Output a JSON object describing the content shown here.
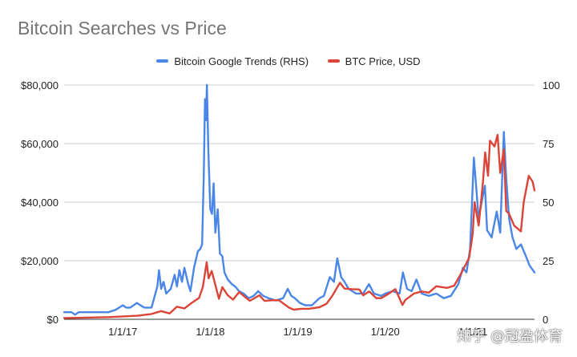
{
  "chart_data": {
    "type": "line",
    "title": "Bitcoin Searches vs Price",
    "legend_position": "top",
    "grid": true,
    "x_ticks": [
      "1/1/17",
      "1/1/18",
      "1/1/19",
      "1/1/20",
      "1/1/21"
    ],
    "xlim": [
      "2016-05-01",
      "2021-09-15"
    ],
    "y_left": {
      "label": "",
      "lim": [
        0,
        80000
      ],
      "ticks": [
        "$0",
        "$20,000",
        "$40,000",
        "$60,000",
        "$80,000"
      ]
    },
    "y_right": {
      "label": "",
      "lim": [
        0,
        100
      ],
      "ticks": [
        "0",
        "25",
        "50",
        "75",
        "100"
      ]
    },
    "series": [
      {
        "name": "Bitcoin Google Trends (RHS)",
        "axis": "right",
        "color": "#4a86e8",
        "points": [
          [
            "2016-05-01",
            3
          ],
          [
            "2016-06-01",
            3
          ],
          [
            "2016-06-15",
            2
          ],
          [
            "2016-07-01",
            3
          ],
          [
            "2016-08-01",
            3
          ],
          [
            "2016-09-01",
            3
          ],
          [
            "2016-10-01",
            3
          ],
          [
            "2016-11-01",
            3
          ],
          [
            "2016-12-01",
            4
          ],
          [
            "2017-01-01",
            6
          ],
          [
            "2017-01-15",
            5
          ],
          [
            "2017-02-01",
            5
          ],
          [
            "2017-03-01",
            7
          ],
          [
            "2017-03-15",
            6
          ],
          [
            "2017-04-01",
            5
          ],
          [
            "2017-05-01",
            5
          ],
          [
            "2017-05-25",
            14
          ],
          [
            "2017-06-01",
            21
          ],
          [
            "2017-06-10",
            13
          ],
          [
            "2017-06-20",
            16
          ],
          [
            "2017-07-01",
            11
          ],
          [
            "2017-07-20",
            13
          ],
          [
            "2017-08-05",
            19
          ],
          [
            "2017-08-15",
            14
          ],
          [
            "2017-08-25",
            21
          ],
          [
            "2017-09-05",
            16
          ],
          [
            "2017-09-15",
            22
          ],
          [
            "2017-10-01",
            15
          ],
          [
            "2017-10-10",
            12
          ],
          [
            "2017-10-25",
            22
          ],
          [
            "2017-11-10",
            29
          ],
          [
            "2017-11-20",
            30
          ],
          [
            "2017-11-28",
            32
          ],
          [
            "2017-12-05",
            62
          ],
          [
            "2017-12-10",
            94
          ],
          [
            "2017-12-14",
            85
          ],
          [
            "2017-12-18",
            100
          ],
          [
            "2017-12-24",
            72
          ],
          [
            "2018-01-01",
            47
          ],
          [
            "2018-01-08",
            45
          ],
          [
            "2018-01-15",
            58
          ],
          [
            "2018-01-22",
            37
          ],
          [
            "2018-02-01",
            47
          ],
          [
            "2018-02-10",
            28
          ],
          [
            "2018-02-20",
            27
          ],
          [
            "2018-03-01",
            20
          ],
          [
            "2018-03-15",
            17
          ],
          [
            "2018-04-01",
            15
          ],
          [
            "2018-04-15",
            14
          ],
          [
            "2018-05-01",
            12
          ],
          [
            "2018-05-20",
            11
          ],
          [
            "2018-06-10",
            9
          ],
          [
            "2018-07-01",
            10
          ],
          [
            "2018-07-20",
            12
          ],
          [
            "2018-08-10",
            10
          ],
          [
            "2018-09-01",
            9
          ],
          [
            "2018-10-01",
            8
          ],
          [
            "2018-11-01",
            9
          ],
          [
            "2018-11-20",
            13
          ],
          [
            "2018-12-05",
            10
          ],
          [
            "2018-12-20",
            9
          ],
          [
            "2019-01-10",
            7
          ],
          [
            "2019-02-01",
            6
          ],
          [
            "2019-03-01",
            6
          ],
          [
            "2019-04-01",
            9
          ],
          [
            "2019-04-20",
            10
          ],
          [
            "2019-05-15",
            18
          ],
          [
            "2019-06-01",
            16
          ],
          [
            "2019-06-15",
            26
          ],
          [
            "2019-07-01",
            18
          ],
          [
            "2019-07-15",
            16
          ],
          [
            "2019-08-01",
            13
          ],
          [
            "2019-09-01",
            11
          ],
          [
            "2019-10-01",
            11
          ],
          [
            "2019-10-25",
            15
          ],
          [
            "2019-11-15",
            11
          ],
          [
            "2019-12-15",
            10
          ],
          [
            "2020-01-01",
            11
          ],
          [
            "2020-02-01",
            12
          ],
          [
            "2020-03-01",
            11
          ],
          [
            "2020-03-15",
            20
          ],
          [
            "2020-04-01",
            13
          ],
          [
            "2020-04-20",
            12
          ],
          [
            "2020-05-10",
            17
          ],
          [
            "2020-06-01",
            11
          ],
          [
            "2020-07-01",
            10
          ],
          [
            "2020-08-01",
            11
          ],
          [
            "2020-09-01",
            9
          ],
          [
            "2020-10-01",
            10
          ],
          [
            "2020-11-01",
            15
          ],
          [
            "2020-11-20",
            22
          ],
          [
            "2020-12-05",
            20
          ],
          [
            "2020-12-20",
            30
          ],
          [
            "2021-01-05",
            69
          ],
          [
            "2021-01-12",
            60
          ],
          [
            "2021-01-25",
            43
          ],
          [
            "2021-02-10",
            52
          ],
          [
            "2021-02-20",
            57
          ],
          [
            "2021-03-01",
            38
          ],
          [
            "2021-03-20",
            35
          ],
          [
            "2021-04-10",
            46
          ],
          [
            "2021-04-25",
            37
          ],
          [
            "2021-05-10",
            80
          ],
          [
            "2021-05-20",
            60
          ],
          [
            "2021-06-01",
            43
          ],
          [
            "2021-06-15",
            35
          ],
          [
            "2021-07-01",
            30
          ],
          [
            "2021-07-20",
            32
          ],
          [
            "2021-08-10",
            27
          ],
          [
            "2021-08-25",
            23
          ],
          [
            "2021-09-15",
            20
          ]
        ]
      },
      {
        "name": "BTC Price, USD",
        "axis": "left",
        "color": "#db4437",
        "points": [
          [
            "2016-05-01",
            450
          ],
          [
            "2016-08-01",
            570
          ],
          [
            "2016-11-01",
            730
          ],
          [
            "2017-01-01",
            990
          ],
          [
            "2017-03-01",
            1200
          ],
          [
            "2017-05-01",
            1800
          ],
          [
            "2017-06-10",
            2800
          ],
          [
            "2017-07-15",
            2000
          ],
          [
            "2017-08-15",
            4300
          ],
          [
            "2017-09-15",
            3700
          ],
          [
            "2017-10-15",
            5600
          ],
          [
            "2017-11-15",
            7300
          ],
          [
            "2017-12-01",
            11000
          ],
          [
            "2017-12-17",
            19500
          ],
          [
            "2017-12-25",
            14000
          ],
          [
            "2018-01-07",
            16500
          ],
          [
            "2018-02-06",
            7000
          ],
          [
            "2018-02-20",
            11000
          ],
          [
            "2018-03-15",
            8200
          ],
          [
            "2018-04-06",
            6700
          ],
          [
            "2018-05-01",
            9300
          ],
          [
            "2018-06-15",
            6300
          ],
          [
            "2018-07-25",
            8200
          ],
          [
            "2018-08-15",
            6300
          ],
          [
            "2018-09-15",
            6500
          ],
          [
            "2018-10-15",
            6500
          ],
          [
            "2018-11-25",
            4000
          ],
          [
            "2018-12-15",
            3300
          ],
          [
            "2019-01-15",
            3600
          ],
          [
            "2019-02-15",
            3600
          ],
          [
            "2019-04-01",
            4100
          ],
          [
            "2019-05-01",
            5300
          ],
          [
            "2019-05-25",
            8000
          ],
          [
            "2019-06-26",
            12500
          ],
          [
            "2019-07-15",
            10500
          ],
          [
            "2019-08-15",
            10300
          ],
          [
            "2019-09-15",
            10200
          ],
          [
            "2019-10-01",
            8200
          ],
          [
            "2019-10-26",
            9500
          ],
          [
            "2019-11-25",
            7200
          ],
          [
            "2019-12-15",
            7200
          ],
          [
            "2020-01-15",
            8700
          ],
          [
            "2020-02-12",
            10300
          ],
          [
            "2020-03-13",
            4900
          ],
          [
            "2020-03-25",
            6600
          ],
          [
            "2020-04-30",
            8800
          ],
          [
            "2020-06-01",
            9500
          ],
          [
            "2020-07-01",
            9100
          ],
          [
            "2020-08-01",
            11300
          ],
          [
            "2020-09-15",
            10700
          ],
          [
            "2020-10-15",
            11500
          ],
          [
            "2020-11-15",
            16000
          ],
          [
            "2020-12-16",
            21000
          ],
          [
            "2020-12-31",
            29000
          ],
          [
            "2021-01-08",
            40000
          ],
          [
            "2021-01-25",
            32000
          ],
          [
            "2021-02-12",
            47000
          ],
          [
            "2021-02-21",
            57000
          ],
          [
            "2021-03-05",
            49000
          ],
          [
            "2021-03-13",
            61000
          ],
          [
            "2021-04-01",
            59000
          ],
          [
            "2021-04-14",
            63000
          ],
          [
            "2021-04-25",
            50000
          ],
          [
            "2021-05-10",
            58000
          ],
          [
            "2021-05-20",
            37000
          ],
          [
            "2021-06-01",
            36000
          ],
          [
            "2021-06-22",
            32000
          ],
          [
            "2021-07-20",
            30000
          ],
          [
            "2021-08-01",
            40000
          ],
          [
            "2021-08-22",
            49000
          ],
          [
            "2021-09-07",
            47000
          ],
          [
            "2021-09-15",
            44000
          ]
        ]
      }
    ]
  },
  "watermark": "知乎 @冠盈体育"
}
